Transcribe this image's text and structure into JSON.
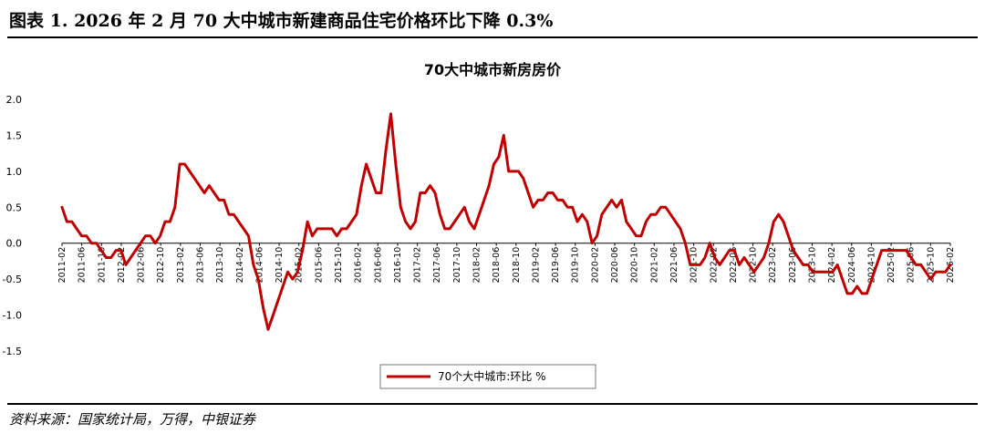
{
  "figure_title": "图表 1. 2026 年 2 月 70 大中城市新建商品住宅价格环比下降 0.3%",
  "source": "资料来源：国家统计局，万得，中银证券",
  "chart_data": {
    "type": "line",
    "title": "70大中城市新房房价",
    "xlabel": "",
    "ylabel": "",
    "ylim": [
      -1.5,
      2.0
    ],
    "yticks": [
      "2.0",
      "1.5",
      "1.0",
      "0.5",
      "0.0",
      "-0.5",
      "-1.0",
      "-1.5"
    ],
    "grid": false,
    "legend_position": "bottom",
    "color": "#c00000",
    "x_tick_labels": [
      "2011-02",
      "2011-06",
      "2011-10",
      "2012-02",
      "2012-06",
      "2012-10",
      "2013-02",
      "2013-06",
      "2013-10",
      "2014-02",
      "2014-06",
      "2014-10",
      "2015-02",
      "2015-06",
      "2015-10",
      "2016-02",
      "2016-06",
      "2016-10",
      "2017-02",
      "2017-06",
      "2017-10",
      "2018-02",
      "2018-06",
      "2018-10",
      "2019-02",
      "2019-06",
      "2019-10",
      "2020-02",
      "2020-06",
      "2020-10",
      "2021-02",
      "2021-06",
      "2021-10",
      "2022-02",
      "2022-06",
      "2022-10",
      "2023-02",
      "2023-06",
      "2023-10",
      "2024-02",
      "2024-06",
      "2024-10",
      "2025-02",
      "2025-06",
      "2025-10",
      "2026-02"
    ],
    "series": [
      {
        "name": "70个大中城市:环比 %",
        "values": [
          0.5,
          0.3,
          0.3,
          0.2,
          0.1,
          0.1,
          0.0,
          0.0,
          -0.1,
          -0.2,
          -0.2,
          -0.1,
          -0.1,
          -0.3,
          -0.2,
          -0.1,
          0.0,
          0.1,
          0.1,
          0.0,
          0.1,
          0.3,
          0.3,
          0.5,
          1.1,
          1.1,
          1.0,
          0.9,
          0.8,
          0.7,
          0.8,
          0.7,
          0.6,
          0.6,
          0.4,
          0.4,
          0.3,
          0.2,
          0.1,
          -0.3,
          -0.5,
          -0.9,
          -1.2,
          -1.0,
          -0.8,
          -0.6,
          -0.4,
          -0.5,
          -0.4,
          -0.1,
          0.3,
          0.1,
          0.2,
          0.2,
          0.2,
          0.2,
          0.1,
          0.2,
          0.2,
          0.3,
          0.4,
          0.8,
          1.1,
          0.9,
          0.7,
          0.7,
          1.3,
          1.8,
          1.1,
          0.5,
          0.3,
          0.2,
          0.3,
          0.7,
          0.7,
          0.8,
          0.7,
          0.4,
          0.2,
          0.2,
          0.3,
          0.4,
          0.5,
          0.3,
          0.2,
          0.4,
          0.6,
          0.8,
          1.1,
          1.2,
          1.5,
          1.0,
          1.0,
          1.0,
          0.9,
          0.7,
          0.5,
          0.6,
          0.6,
          0.7,
          0.7,
          0.6,
          0.6,
          0.5,
          0.5,
          0.3,
          0.4,
          0.3,
          0.0,
          0.1,
          0.4,
          0.5,
          0.6,
          0.5,
          0.6,
          0.3,
          0.2,
          0.1,
          0.1,
          0.3,
          0.4,
          0.4,
          0.5,
          0.5,
          0.4,
          0.3,
          0.2,
          0.0,
          -0.3,
          -0.3,
          -0.3,
          -0.2,
          0.0,
          -0.2,
          -0.3,
          -0.2,
          -0.1,
          -0.1,
          -0.3,
          -0.2,
          -0.3,
          -0.4,
          -0.3,
          -0.2,
          0.0,
          0.3,
          0.4,
          0.3,
          0.1,
          -0.1,
          -0.2,
          -0.3,
          -0.3,
          -0.4,
          -0.4,
          -0.4,
          -0.4,
          -0.4,
          -0.3,
          -0.5,
          -0.7,
          -0.7,
          -0.6,
          -0.7,
          -0.7,
          -0.5,
          -0.3,
          -0.1,
          -0.1,
          -0.1,
          -0.1,
          -0.1,
          -0.1,
          -0.2,
          -0.3,
          -0.3,
          -0.4,
          -0.5,
          -0.4,
          -0.4,
          -0.4,
          -0.3
        ]
      }
    ]
  }
}
